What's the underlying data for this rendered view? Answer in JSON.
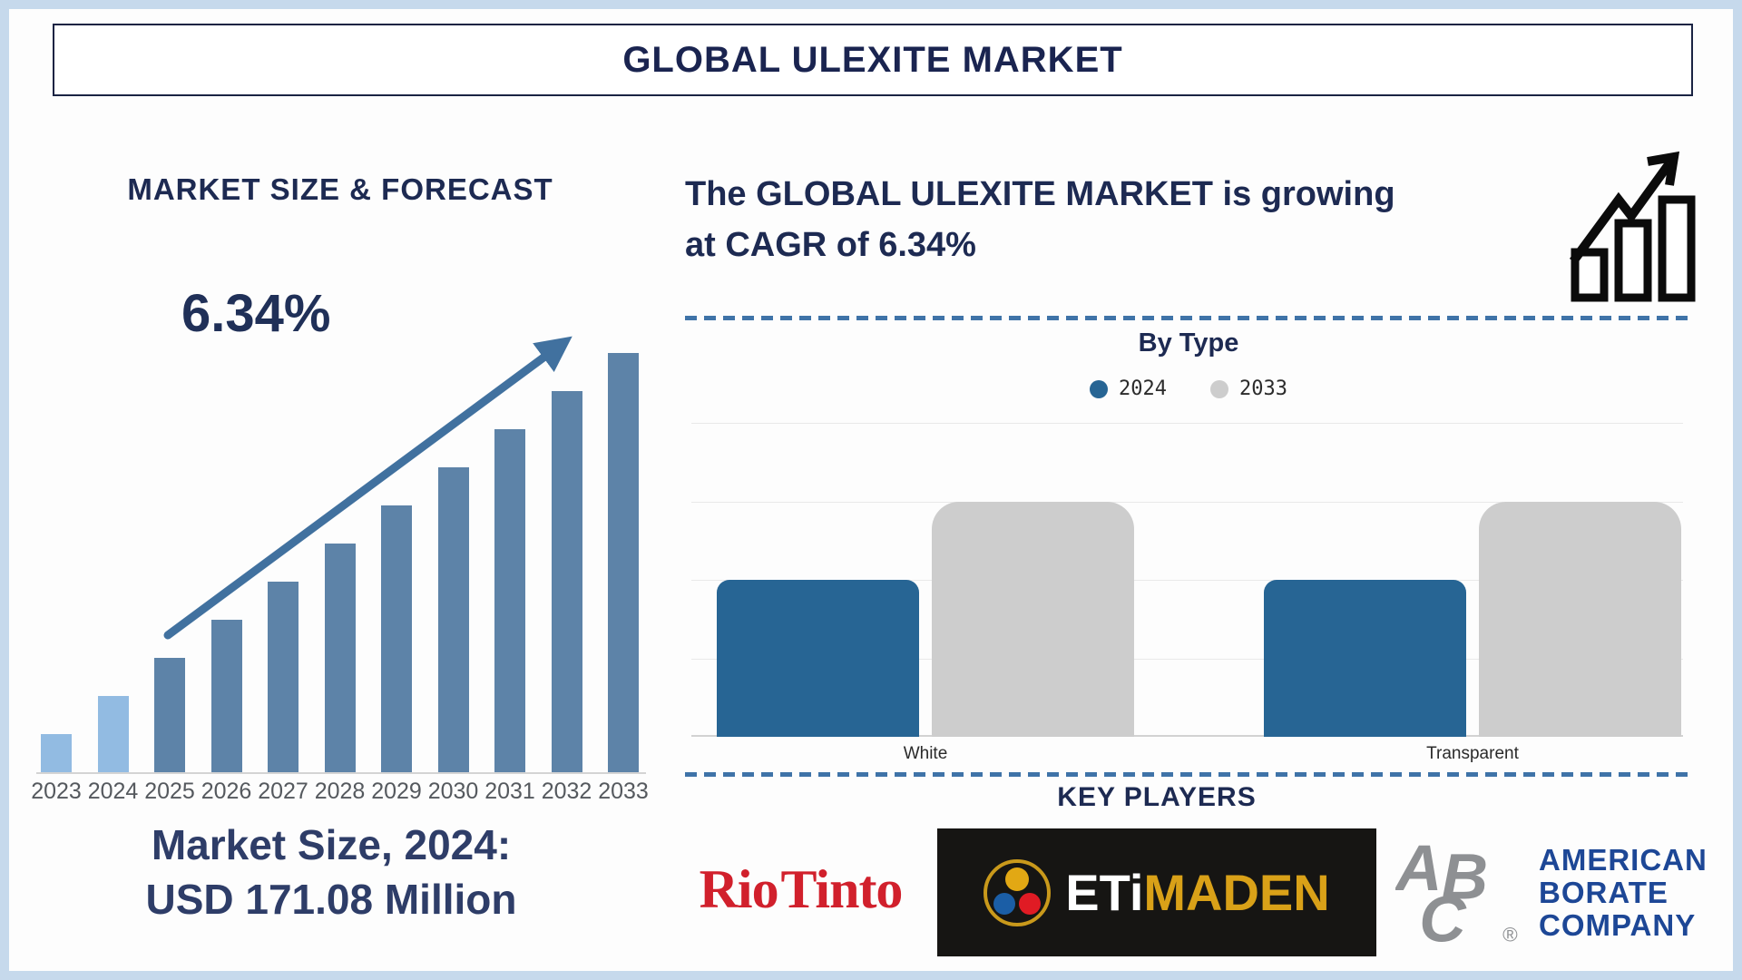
{
  "title_bar": {
    "title": "GLOBAL ULEXITE MARKET"
  },
  "forecast_section": {
    "heading": "MARKET SIZE & FORECAST",
    "cagr_label": "6.34%",
    "market_size_line1": "Market Size, 2024:",
    "market_size_line2": "USD 171.08 Million"
  },
  "growth_section": {
    "line1": "The GLOBAL ULEXITE MARKET is growing",
    "line2": "at CAGR of 6.34%"
  },
  "by_type_section": {
    "heading": "By Type"
  },
  "key_players_section": {
    "heading": "KEY PLAYERS",
    "players": [
      {
        "name": "Rio Tinto",
        "logo_text": "Rio Tinto"
      },
      {
        "name": "Eti Maden",
        "logo_text_white": "ETi",
        "logo_text_gold": "MADEN"
      },
      {
        "name": "American Borate Company",
        "monogram": "ABC",
        "registered_mark": "®",
        "lines": [
          "AMERICAN",
          "BORATE",
          "COMPANY"
        ]
      }
    ]
  },
  "chart_data": [
    {
      "type": "bar",
      "title": "MARKET SIZE & FORECAST",
      "categories": [
        "2023",
        "2024",
        "2025",
        "2026",
        "2027",
        "2028",
        "2029",
        "2030",
        "2031",
        "2032",
        "2033"
      ],
      "values": [
        1,
        2,
        3,
        4,
        5,
        6,
        7,
        8,
        9,
        10,
        11
      ],
      "values_note": "relative illustrative bar heights, linear growth ramp; no y-axis labels shown",
      "annotation": "6.34%",
      "highlight_years": [
        "2023",
        "2024"
      ],
      "colors": {
        "highlight": "#92bbe2",
        "default": "#5d83a8",
        "arrow": "#41719f"
      },
      "xlabel": "",
      "ylabel": "",
      "ylim": [
        0,
        12.4
      ],
      "grid": false,
      "legend_position": "none"
    },
    {
      "type": "bar",
      "title": "By Type",
      "categories": [
        "White",
        "Transparent"
      ],
      "series": [
        {
          "name": "2024",
          "values": [
            2,
            2
          ],
          "color": "#276594"
        },
        {
          "name": "2033",
          "values": [
            3,
            3
          ],
          "color": "#cdcdcd"
        }
      ],
      "values_note": "relative heights in gridline units; no y-axis labels shown",
      "xlabel": "",
      "ylabel": "",
      "ylim": [
        0,
        4
      ],
      "grid": true,
      "legend_position": "top"
    }
  ],
  "colors": {
    "navy_heading": "#1d2a52",
    "navy_market_size": "#2e3d68",
    "bar_highlight_blue": "#92bbe2",
    "bar_steel_blue": "#5d83a8",
    "arrow_blue": "#41719f",
    "type_bar_2024_blue": "#276594",
    "type_bar_2033_gray": "#cdcdcd",
    "dashed_line_blue": "#3f73a8",
    "frame_light_blue": "#c6d9ec",
    "rio_tinto_red": "#d1202c",
    "etimaden_gold": "#d9a118",
    "etimaden_background": "#161513",
    "abc_blue": "#1d4796",
    "abc_gray": "#8e9093",
    "axis_label_gray": "#55595e"
  }
}
